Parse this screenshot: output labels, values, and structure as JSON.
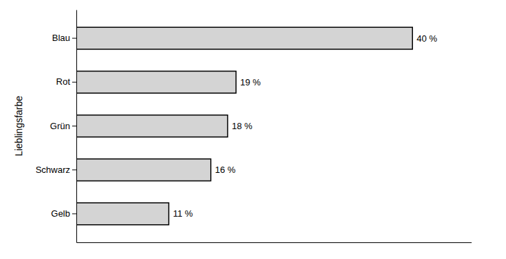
{
  "chart_data": {
    "type": "bar",
    "orientation": "horizontal",
    "y_label": "Lieblingsfarbe",
    "categories": [
      "Blau",
      "Rot",
      "Grün",
      "Schwarz",
      "Gelb"
    ],
    "values": [
      40,
      19,
      18,
      16,
      11
    ],
    "value_labels": [
      "40 %",
      "19 %",
      "18 %",
      "16 %",
      "11 %"
    ],
    "color": "#d4d4d4",
    "xlim": [
      0,
      47
    ],
    "xticks": [],
    "grid": false,
    "data_labels": true,
    "tick_labels": "y"
  }
}
